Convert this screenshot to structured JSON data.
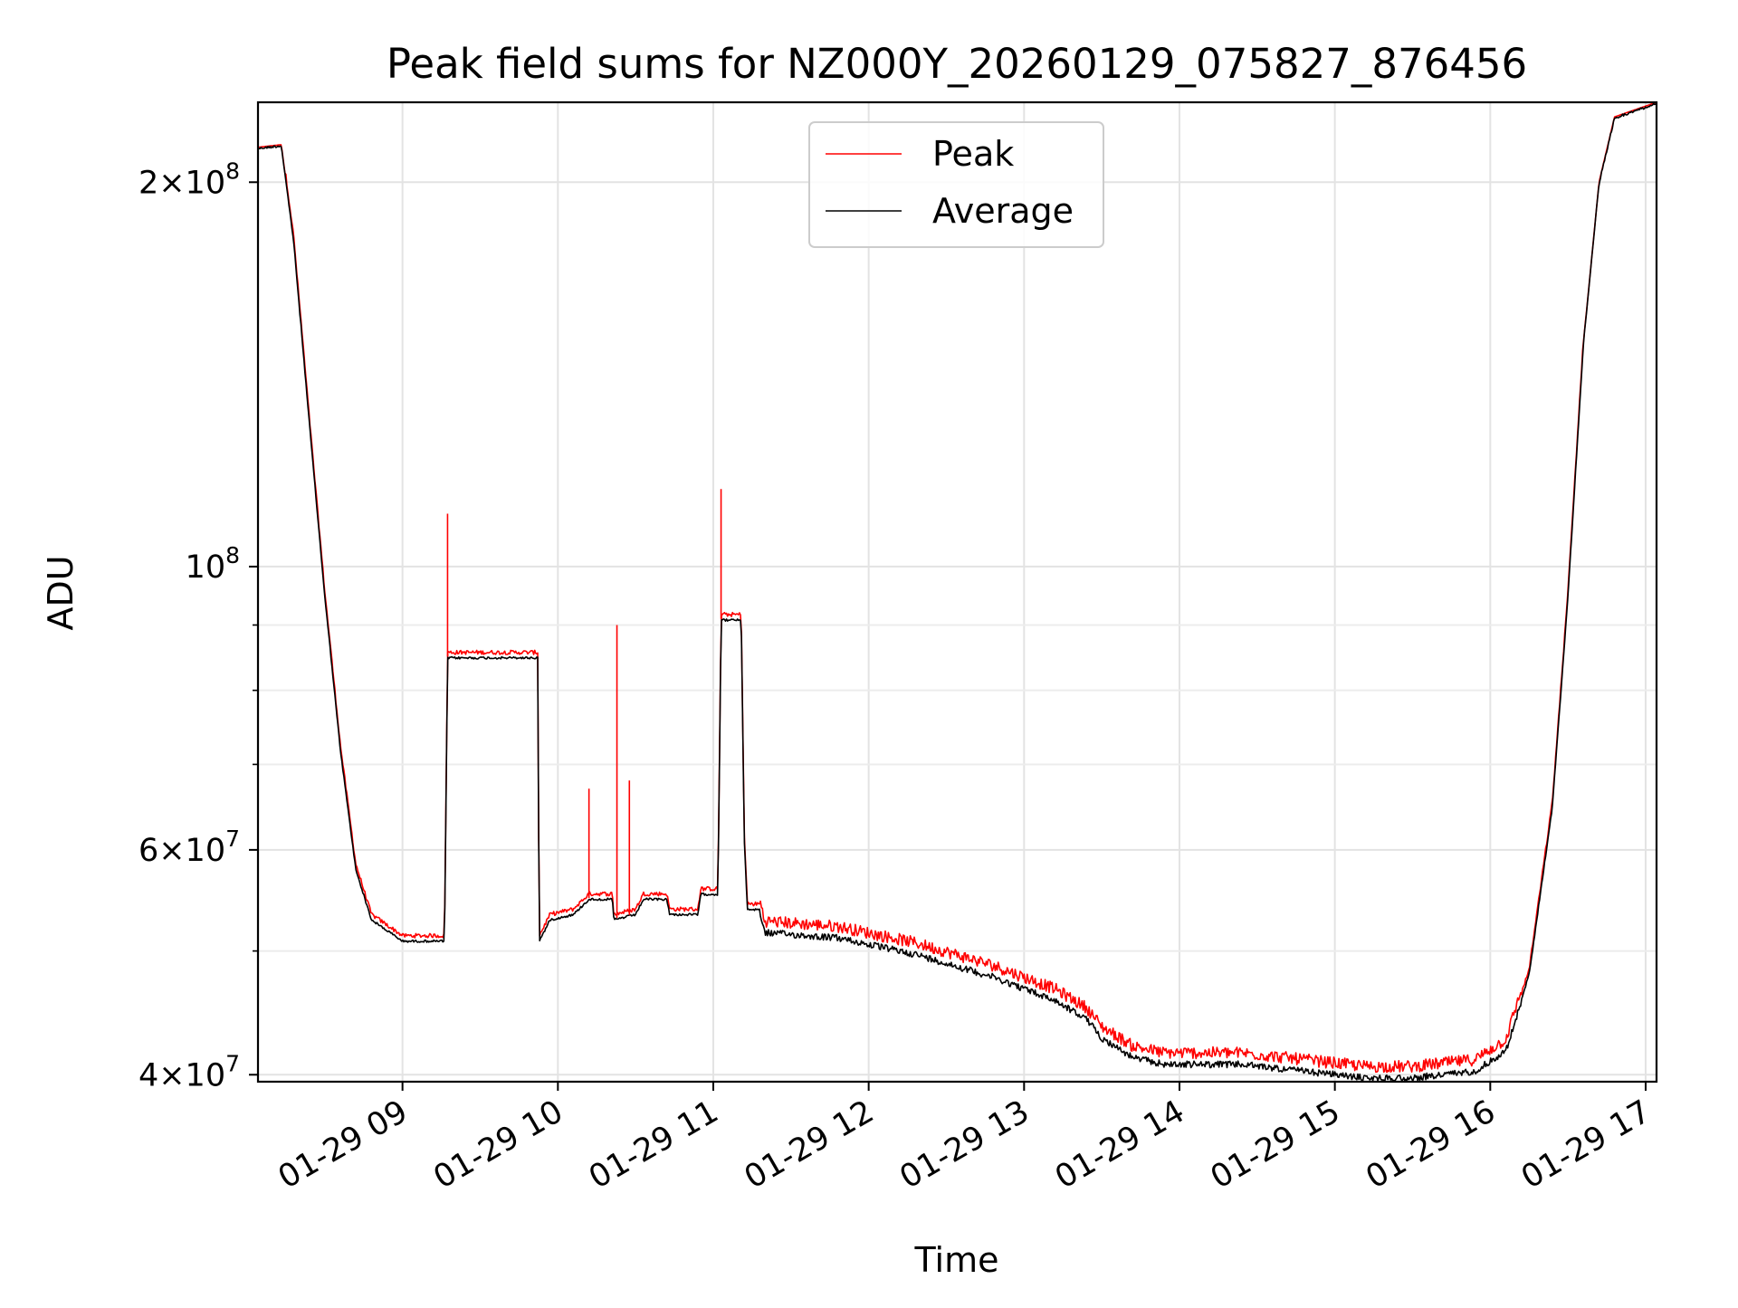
{
  "chart_data": {
    "type": "line",
    "title": "Peak field sums for NZ000Y_20260129_075827_876456",
    "xlabel": "Time",
    "ylabel": "ADU",
    "yscale": "log",
    "xlim": [
      8.07,
      17.07
    ],
    "ylim": [
      39500000,
      231000000
    ],
    "grid": true,
    "legend_position": "top-center",
    "x_ticks": [
      {
        "value": 9,
        "label": "01-29 09"
      },
      {
        "value": 10,
        "label": "01-29 10"
      },
      {
        "value": 11,
        "label": "01-29 11"
      },
      {
        "value": 12,
        "label": "01-29 12"
      },
      {
        "value": 13,
        "label": "01-29 13"
      },
      {
        "value": 14,
        "label": "01-29 14"
      },
      {
        "value": 15,
        "label": "01-29 15"
      },
      {
        "value": 16,
        "label": "01-29 16"
      },
      {
        "value": 17,
        "label": "01-29 17"
      }
    ],
    "y_major_ticks": [
      {
        "value": 40000000,
        "mantissa": "4",
        "exponent": "7"
      },
      {
        "value": 60000000,
        "mantissa": "6",
        "exponent": "7"
      },
      {
        "value": 100000000,
        "mantissa": "",
        "exponent": "8"
      },
      {
        "value": 200000000,
        "mantissa": "2",
        "exponent": "8"
      }
    ],
    "y_minor_ticks": [
      50000000,
      70000000,
      80000000,
      90000000
    ],
    "series": [
      {
        "name": "Peak",
        "color": "#ff0000",
        "spikes": [
          {
            "x": 9.29,
            "y": 110000000
          },
          {
            "x": 10.2,
            "y": 67000000
          },
          {
            "x": 10.38,
            "y": 90000000
          },
          {
            "x": 10.46,
            "y": 68000000
          },
          {
            "x": 11.05,
            "y": 115000000
          }
        ]
      },
      {
        "name": "Average",
        "color": "#000000",
        "points": [
          [
            8.07,
            213000000
          ],
          [
            8.22,
            214000000
          ],
          [
            8.3,
            180000000
          ],
          [
            8.4,
            130000000
          ],
          [
            8.5,
            95000000
          ],
          [
            8.6,
            72000000
          ],
          [
            8.7,
            58000000
          ],
          [
            8.8,
            53000000
          ],
          [
            9.0,
            51000000
          ],
          [
            9.27,
            51000000
          ],
          [
            9.29,
            85000000
          ],
          [
            9.6,
            85000000
          ],
          [
            9.87,
            85000000
          ],
          [
            9.88,
            51000000
          ],
          [
            9.95,
            53000000
          ],
          [
            10.1,
            53500000
          ],
          [
            10.2,
            55000000
          ],
          [
            10.35,
            55000000
          ],
          [
            10.36,
            53000000
          ],
          [
            10.5,
            53500000
          ],
          [
            10.55,
            55000000
          ],
          [
            10.7,
            55000000
          ],
          [
            10.72,
            53500000
          ],
          [
            10.9,
            53500000
          ],
          [
            10.92,
            55500000
          ],
          [
            11.03,
            55500000
          ],
          [
            11.05,
            91000000
          ],
          [
            11.18,
            91000000
          ],
          [
            11.2,
            61000000
          ],
          [
            11.22,
            54000000
          ],
          [
            11.3,
            54000000
          ],
          [
            11.33,
            52000000
          ],
          [
            11.8,
            51500000
          ],
          [
            12.3,
            50000000
          ],
          [
            12.8,
            48000000
          ],
          [
            13.2,
            46000000
          ],
          [
            13.4,
            44500000
          ],
          [
            13.5,
            43000000
          ],
          [
            13.7,
            41500000
          ],
          [
            13.9,
            41000000
          ],
          [
            14.4,
            41000000
          ],
          [
            14.8,
            40500000
          ],
          [
            15.2,
            40000000
          ],
          [
            15.5,
            40000000
          ],
          [
            15.9,
            40500000
          ],
          [
            16.1,
            42000000
          ],
          [
            16.25,
            48000000
          ],
          [
            16.4,
            65000000
          ],
          [
            16.5,
            95000000
          ],
          [
            16.6,
            150000000
          ],
          [
            16.7,
            200000000
          ],
          [
            16.8,
            225000000
          ],
          [
            17.07,
            231000000
          ]
        ]
      }
    ]
  }
}
